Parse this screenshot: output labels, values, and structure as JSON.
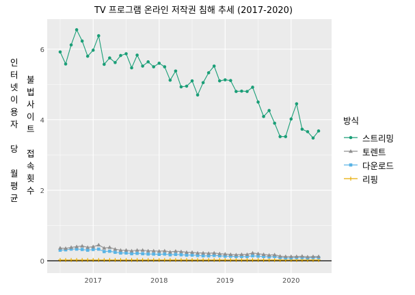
{
  "chart_data": {
    "type": "line",
    "title": "TV 프로그램 온라인 저작권 침해 추세 (2017-2020)",
    "xlabel": "",
    "ylabel_parts": [
      "인터넷이용자 당 월평균",
      "불법사이트 접속횟수"
    ],
    "x_ticks": [
      "2017",
      "2018",
      "2019",
      "2020"
    ],
    "y_ticks": [
      "0",
      "2",
      "4",
      "6"
    ],
    "ylim": [
      -0.35,
      6.85
    ],
    "grid": true,
    "legend_title": "방식",
    "legend_position": "right",
    "x_dates": [
      "2016-07",
      "2016-08",
      "2016-09",
      "2016-10",
      "2016-11",
      "2016-12",
      "2017-01",
      "2017-02",
      "2017-03",
      "2017-04",
      "2017-05",
      "2017-06",
      "2017-07",
      "2017-08",
      "2017-09",
      "2017-10",
      "2017-11",
      "2017-12",
      "2018-01",
      "2018-02",
      "2018-03",
      "2018-04",
      "2018-05",
      "2018-06",
      "2018-07",
      "2018-08",
      "2018-09",
      "2018-10",
      "2018-11",
      "2018-12",
      "2019-01",
      "2019-02",
      "2019-03",
      "2019-04",
      "2019-05",
      "2019-06",
      "2019-07",
      "2019-08",
      "2019-09",
      "2019-10",
      "2019-11",
      "2019-12",
      "2020-01",
      "2020-02",
      "2020-03",
      "2020-04",
      "2020-05",
      "2020-06"
    ],
    "series": [
      {
        "name": "스트리밍",
        "color": "#1a9e77",
        "marker": "circle",
        "values": [
          5.92,
          5.58,
          6.12,
          6.55,
          6.23,
          5.8,
          5.97,
          6.38,
          5.57,
          5.75,
          5.62,
          5.82,
          5.87,
          5.47,
          5.83,
          5.52,
          5.64,
          5.5,
          5.6,
          5.5,
          5.12,
          5.38,
          4.93,
          4.95,
          5.1,
          4.7,
          5.05,
          5.33,
          5.52,
          5.1,
          5.13,
          5.11,
          4.8,
          4.81,
          4.8,
          4.92,
          4.5,
          4.09,
          4.26,
          3.9,
          3.52,
          3.52,
          4.02,
          4.45,
          3.73,
          3.66,
          3.48,
          3.68
        ]
      },
      {
        "name": "토렌트",
        "color": "#8f8f8f",
        "marker": "triangle",
        "values": [
          0.36,
          0.35,
          0.38,
          0.4,
          0.42,
          0.38,
          0.4,
          0.45,
          0.36,
          0.38,
          0.33,
          0.3,
          0.3,
          0.28,
          0.3,
          0.3,
          0.28,
          0.28,
          0.27,
          0.28,
          0.25,
          0.27,
          0.26,
          0.24,
          0.24,
          0.22,
          0.22,
          0.21,
          0.22,
          0.2,
          0.19,
          0.18,
          0.17,
          0.18,
          0.18,
          0.22,
          0.2,
          0.18,
          0.16,
          0.17,
          0.13,
          0.12,
          0.12,
          0.12,
          0.13,
          0.11,
          0.12,
          0.12
        ]
      },
      {
        "name": "다운로드",
        "color": "#5ab4e5",
        "marker": "square",
        "values": [
          0.3,
          0.31,
          0.33,
          0.33,
          0.32,
          0.3,
          0.32,
          0.33,
          0.26,
          0.27,
          0.24,
          0.22,
          0.22,
          0.2,
          0.21,
          0.2,
          0.19,
          0.19,
          0.18,
          0.19,
          0.17,
          0.18,
          0.17,
          0.16,
          0.16,
          0.15,
          0.14,
          0.14,
          0.15,
          0.14,
          0.13,
          0.13,
          0.12,
          0.12,
          0.12,
          0.14,
          0.13,
          0.12,
          0.11,
          0.12,
          0.09,
          0.08,
          0.08,
          0.09,
          0.09,
          0.08,
          0.09,
          0.09
        ]
      },
      {
        "name": "리핑",
        "color": "#e6ab02",
        "marker": "cross",
        "values": [
          0.02,
          0.02,
          0.02,
          0.02,
          0.02,
          0.02,
          0.02,
          0.02,
          0.02,
          0.02,
          0.02,
          0.02,
          0.02,
          0.02,
          0.02,
          0.02,
          0.02,
          0.02,
          0.02,
          0.02,
          0.02,
          0.02,
          0.02,
          0.02,
          0.02,
          0.02,
          0.02,
          0.02,
          0.02,
          0.02,
          0.02,
          0.02,
          0.02,
          0.02,
          0.02,
          0.02,
          0.02,
          0.02,
          0.02,
          0.02,
          0.02,
          0.02,
          0.02,
          0.02,
          0.02,
          0.02,
          0.02,
          0.02
        ]
      }
    ]
  }
}
